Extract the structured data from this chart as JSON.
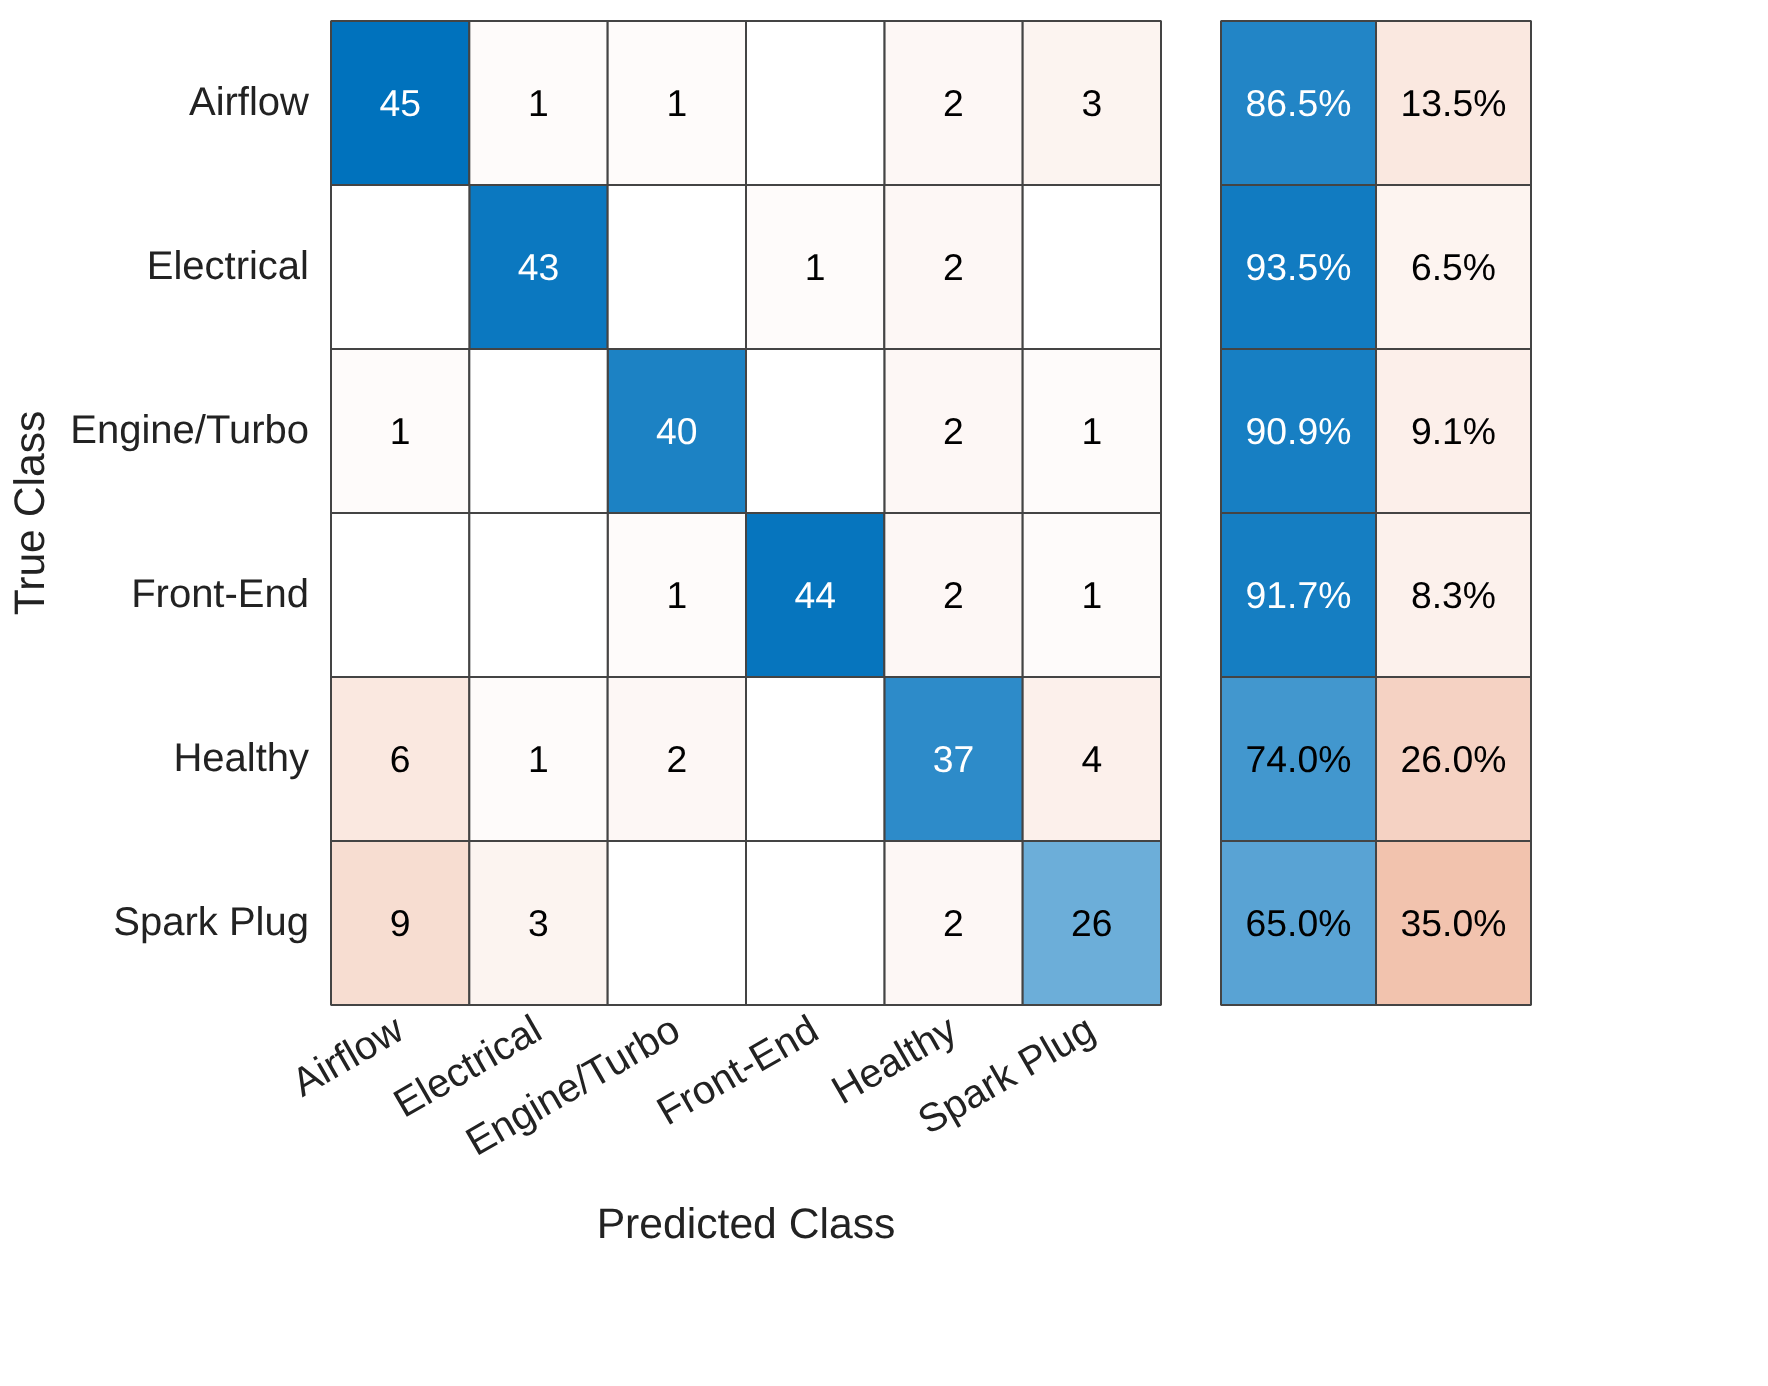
{
  "chart_data": [
    {
      "type": "heatmap",
      "data_labels": true,
      "xlabel": "Predicted Class",
      "ylabel": "True Class",
      "categories": [
        "Airflow",
        "Electrical",
        "Engine/Turbo",
        "Front-End",
        "Healthy",
        "Spark Plug"
      ],
      "y_categories": [
        "Airflow",
        "Electrical",
        "Engine/Turbo",
        "Front-End",
        "Healthy",
        "Spark Plug"
      ],
      "cells": [
        [
          45,
          1,
          1,
          null,
          2,
          3
        ],
        [
          null,
          43,
          null,
          1,
          2,
          null
        ],
        [
          1,
          null,
          40,
          null,
          2,
          1
        ],
        [
          null,
          null,
          1,
          44,
          2,
          1
        ],
        [
          6,
          1,
          2,
          null,
          37,
          4
        ],
        [
          9,
          3,
          null,
          null,
          2,
          26
        ]
      ]
    },
    {
      "type": "heatmap",
      "categories": [
        null,
        null
      ],
      "y_categories": [
        null,
        null,
        null,
        null,
        null,
        null
      ],
      "cells": [
        [
          86.5,
          13.5
        ],
        [
          93.5,
          6.5
        ],
        [
          90.9,
          9.1
        ],
        [
          91.7,
          8.3
        ],
        [
          74.0,
          26.0
        ],
        [
          65.0,
          35.0
        ]
      ],
      "cell_labels": [
        [
          "86.5%",
          "13.5%"
        ],
        [
          "93.5%",
          "6.5%"
        ],
        [
          "90.9%",
          "9.1%"
        ],
        [
          "91.7%",
          "8.3%"
        ],
        [
          "74.0%",
          "26.0%"
        ],
        [
          "65.0%",
          "35.0%"
        ]
      ]
    }
  ]
}
